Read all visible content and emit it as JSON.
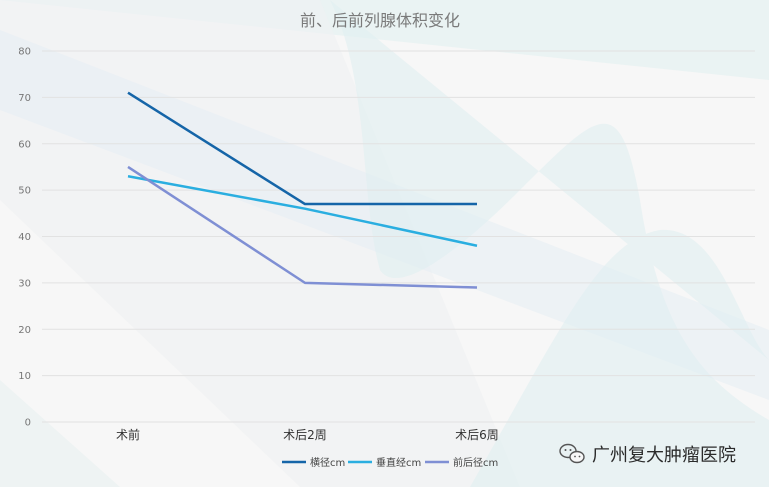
{
  "chart_data": {
    "type": "line",
    "title": "前、后前列腺体积变化",
    "categories": [
      "术前",
      "术后2周",
      "术后6周"
    ],
    "ylim": [
      0,
      80
    ],
    "yticks": [
      0,
      10,
      20,
      30,
      40,
      50,
      60,
      70,
      80
    ],
    "grid": true,
    "legend_position": "bottom",
    "series": [
      {
        "name": "横径cm",
        "values": [
          71,
          47,
          47
        ],
        "color": "#1565a8"
      },
      {
        "name": "垂直经cm",
        "values": [
          53,
          46,
          38
        ],
        "color": "#2aaee0"
      },
      {
        "name": "前后径cm",
        "values": [
          55,
          30,
          29
        ],
        "color": "#7f8fd4"
      }
    ]
  },
  "watermark": {
    "text": "广州复大肿瘤医院",
    "icon": "wechat-icon"
  }
}
